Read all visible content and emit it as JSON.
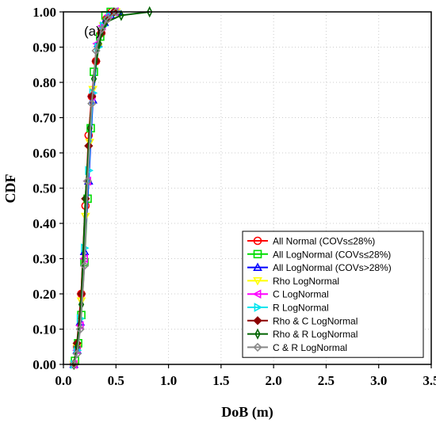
{
  "chart_data": {
    "type": "line",
    "title": "",
    "annotation": "(a)",
    "xlabel": "DoB (m)",
    "ylabel": "CDF",
    "xlim": [
      0.0,
      3.5
    ],
    "ylim": [
      0.0,
      1.0
    ],
    "xticks": [
      "0.0",
      "0.5",
      "1.0",
      "1.5",
      "2.0",
      "2.5",
      "3.0",
      "3.5"
    ],
    "yticks": [
      "0.00",
      "0.10",
      "0.20",
      "0.30",
      "0.40",
      "0.50",
      "0.60",
      "0.70",
      "0.80",
      "0.90",
      "1.00"
    ],
    "grid": "dotted",
    "legend_position": "bottom-right",
    "series": [
      {
        "name": "All Normal (COVs≤28%)",
        "color": "#ff0000",
        "marker": "circle",
        "x": [
          0.1,
          0.13,
          0.17,
          0.21,
          0.24,
          0.27,
          0.31,
          0.36,
          0.41,
          0.46
        ],
        "y": [
          0.0,
          0.05,
          0.2,
          0.45,
          0.65,
          0.76,
          0.86,
          0.94,
          0.98,
          1.0
        ]
      },
      {
        "name": "All LogNormal (COVs≤28%)",
        "color": "#00dd00",
        "marker": "square",
        "x": [
          0.11,
          0.14,
          0.17,
          0.2,
          0.23,
          0.26,
          0.29,
          0.35,
          0.4,
          0.45
        ],
        "y": [
          0.01,
          0.06,
          0.14,
          0.29,
          0.47,
          0.67,
          0.83,
          0.93,
          0.99,
          1.0
        ]
      },
      {
        "name": "All LogNormal (COVs>28%)",
        "color": "#0000ff",
        "marker": "triangle-up",
        "x": [
          0.1,
          0.13,
          0.16,
          0.2,
          0.24,
          0.28,
          0.33,
          0.39,
          0.45,
          0.52
        ],
        "y": [
          0.0,
          0.04,
          0.12,
          0.32,
          0.52,
          0.75,
          0.91,
          0.97,
          0.99,
          1.0
        ]
      },
      {
        "name": "Rho LogNormal",
        "color": "#ffff00",
        "marker": "triangle-down",
        "x": [
          0.1,
          0.13,
          0.17,
          0.21,
          0.25,
          0.28,
          0.33,
          0.38,
          0.44,
          0.5
        ],
        "y": [
          0.0,
          0.05,
          0.18,
          0.42,
          0.63,
          0.78,
          0.9,
          0.96,
          0.99,
          1.0
        ]
      },
      {
        "name": "C LogNormal",
        "color": "#ff00ff",
        "marker": "triangle-left",
        "x": [
          0.1,
          0.13,
          0.16,
          0.2,
          0.23,
          0.27,
          0.32,
          0.37,
          0.43,
          0.49
        ],
        "y": [
          0.0,
          0.04,
          0.11,
          0.3,
          0.52,
          0.76,
          0.91,
          0.96,
          0.99,
          1.0
        ]
      },
      {
        "name": "R LogNormal",
        "color": "#00e5ee",
        "marker": "triangle-right",
        "x": [
          0.1,
          0.13,
          0.16,
          0.2,
          0.24,
          0.28,
          0.33,
          0.38,
          0.44,
          0.5
        ],
        "y": [
          0.0,
          0.04,
          0.13,
          0.33,
          0.55,
          0.77,
          0.9,
          0.96,
          0.99,
          1.0
        ]
      },
      {
        "name": "Rho & C LogNormal",
        "color": "#8b0000",
        "marker": "diamond",
        "x": [
          0.1,
          0.13,
          0.17,
          0.21,
          0.24,
          0.27,
          0.31,
          0.36,
          0.42,
          0.48
        ],
        "y": [
          0.0,
          0.06,
          0.2,
          0.47,
          0.62,
          0.76,
          0.86,
          0.94,
          0.98,
          1.0
        ]
      },
      {
        "name": "Rho & R LogNormal",
        "color": "#006400",
        "marker": "thin-diamond",
        "x": [
          0.1,
          0.13,
          0.17,
          0.21,
          0.25,
          0.29,
          0.34,
          0.4,
          0.55,
          0.82
        ],
        "y": [
          0.0,
          0.05,
          0.17,
          0.47,
          0.67,
          0.81,
          0.91,
          0.97,
          0.99,
          1.0
        ]
      },
      {
        "name": "C & R LogNormal",
        "color": "#888888",
        "marker": "diamond-open",
        "x": [
          0.1,
          0.13,
          0.16,
          0.2,
          0.23,
          0.27,
          0.31,
          0.36,
          0.42,
          0.5
        ],
        "y": [
          0.0,
          0.03,
          0.1,
          0.28,
          0.52,
          0.74,
          0.89,
          0.95,
          0.98,
          1.0
        ]
      }
    ]
  }
}
